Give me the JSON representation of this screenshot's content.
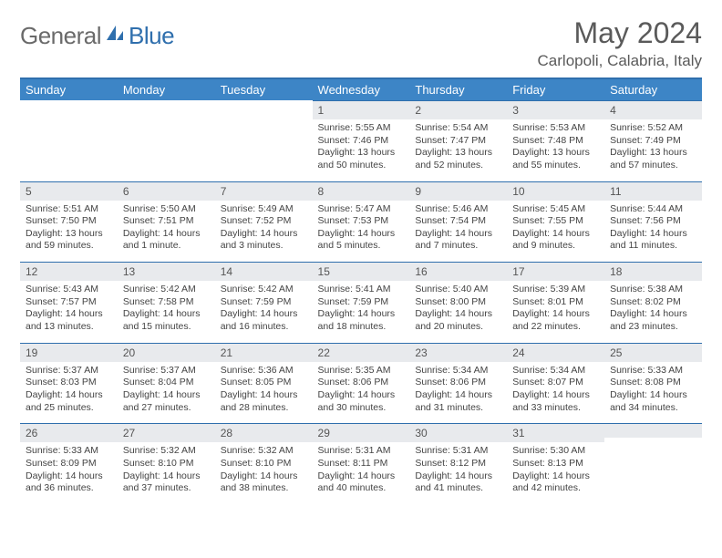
{
  "brand": {
    "part1": "General",
    "part2": "Blue"
  },
  "title": "May 2024",
  "location": "Carlopoli, Calabria, Italy",
  "dow": [
    "Sunday",
    "Monday",
    "Tuesday",
    "Wednesday",
    "Thursday",
    "Friday",
    "Saturday"
  ],
  "colors": {
    "header_bar": "#3d85c6",
    "accent_line": "#2f6fad",
    "daynum_bg": "#e8eaed",
    "text": "#444444",
    "title_text": "#5a5a5a"
  },
  "weeks": [
    [
      {
        "n": "",
        "sr": "",
        "ss": "",
        "dl": ""
      },
      {
        "n": "",
        "sr": "",
        "ss": "",
        "dl": ""
      },
      {
        "n": "",
        "sr": "",
        "ss": "",
        "dl": ""
      },
      {
        "n": "1",
        "sr": "Sunrise: 5:55 AM",
        "ss": "Sunset: 7:46 PM",
        "dl": "Daylight: 13 hours and 50 minutes."
      },
      {
        "n": "2",
        "sr": "Sunrise: 5:54 AM",
        "ss": "Sunset: 7:47 PM",
        "dl": "Daylight: 13 hours and 52 minutes."
      },
      {
        "n": "3",
        "sr": "Sunrise: 5:53 AM",
        "ss": "Sunset: 7:48 PM",
        "dl": "Daylight: 13 hours and 55 minutes."
      },
      {
        "n": "4",
        "sr": "Sunrise: 5:52 AM",
        "ss": "Sunset: 7:49 PM",
        "dl": "Daylight: 13 hours and 57 minutes."
      }
    ],
    [
      {
        "n": "5",
        "sr": "Sunrise: 5:51 AM",
        "ss": "Sunset: 7:50 PM",
        "dl": "Daylight: 13 hours and 59 minutes."
      },
      {
        "n": "6",
        "sr": "Sunrise: 5:50 AM",
        "ss": "Sunset: 7:51 PM",
        "dl": "Daylight: 14 hours and 1 minute."
      },
      {
        "n": "7",
        "sr": "Sunrise: 5:49 AM",
        "ss": "Sunset: 7:52 PM",
        "dl": "Daylight: 14 hours and 3 minutes."
      },
      {
        "n": "8",
        "sr": "Sunrise: 5:47 AM",
        "ss": "Sunset: 7:53 PM",
        "dl": "Daylight: 14 hours and 5 minutes."
      },
      {
        "n": "9",
        "sr": "Sunrise: 5:46 AM",
        "ss": "Sunset: 7:54 PM",
        "dl": "Daylight: 14 hours and 7 minutes."
      },
      {
        "n": "10",
        "sr": "Sunrise: 5:45 AM",
        "ss": "Sunset: 7:55 PM",
        "dl": "Daylight: 14 hours and 9 minutes."
      },
      {
        "n": "11",
        "sr": "Sunrise: 5:44 AM",
        "ss": "Sunset: 7:56 PM",
        "dl": "Daylight: 14 hours and 11 minutes."
      }
    ],
    [
      {
        "n": "12",
        "sr": "Sunrise: 5:43 AM",
        "ss": "Sunset: 7:57 PM",
        "dl": "Daylight: 14 hours and 13 minutes."
      },
      {
        "n": "13",
        "sr": "Sunrise: 5:42 AM",
        "ss": "Sunset: 7:58 PM",
        "dl": "Daylight: 14 hours and 15 minutes."
      },
      {
        "n": "14",
        "sr": "Sunrise: 5:42 AM",
        "ss": "Sunset: 7:59 PM",
        "dl": "Daylight: 14 hours and 16 minutes."
      },
      {
        "n": "15",
        "sr": "Sunrise: 5:41 AM",
        "ss": "Sunset: 7:59 PM",
        "dl": "Daylight: 14 hours and 18 minutes."
      },
      {
        "n": "16",
        "sr": "Sunrise: 5:40 AM",
        "ss": "Sunset: 8:00 PM",
        "dl": "Daylight: 14 hours and 20 minutes."
      },
      {
        "n": "17",
        "sr": "Sunrise: 5:39 AM",
        "ss": "Sunset: 8:01 PM",
        "dl": "Daylight: 14 hours and 22 minutes."
      },
      {
        "n": "18",
        "sr": "Sunrise: 5:38 AM",
        "ss": "Sunset: 8:02 PM",
        "dl": "Daylight: 14 hours and 23 minutes."
      }
    ],
    [
      {
        "n": "19",
        "sr": "Sunrise: 5:37 AM",
        "ss": "Sunset: 8:03 PM",
        "dl": "Daylight: 14 hours and 25 minutes."
      },
      {
        "n": "20",
        "sr": "Sunrise: 5:37 AM",
        "ss": "Sunset: 8:04 PM",
        "dl": "Daylight: 14 hours and 27 minutes."
      },
      {
        "n": "21",
        "sr": "Sunrise: 5:36 AM",
        "ss": "Sunset: 8:05 PM",
        "dl": "Daylight: 14 hours and 28 minutes."
      },
      {
        "n": "22",
        "sr": "Sunrise: 5:35 AM",
        "ss": "Sunset: 8:06 PM",
        "dl": "Daylight: 14 hours and 30 minutes."
      },
      {
        "n": "23",
        "sr": "Sunrise: 5:34 AM",
        "ss": "Sunset: 8:06 PM",
        "dl": "Daylight: 14 hours and 31 minutes."
      },
      {
        "n": "24",
        "sr": "Sunrise: 5:34 AM",
        "ss": "Sunset: 8:07 PM",
        "dl": "Daylight: 14 hours and 33 minutes."
      },
      {
        "n": "25",
        "sr": "Sunrise: 5:33 AM",
        "ss": "Sunset: 8:08 PM",
        "dl": "Daylight: 14 hours and 34 minutes."
      }
    ],
    [
      {
        "n": "26",
        "sr": "Sunrise: 5:33 AM",
        "ss": "Sunset: 8:09 PM",
        "dl": "Daylight: 14 hours and 36 minutes."
      },
      {
        "n": "27",
        "sr": "Sunrise: 5:32 AM",
        "ss": "Sunset: 8:10 PM",
        "dl": "Daylight: 14 hours and 37 minutes."
      },
      {
        "n": "28",
        "sr": "Sunrise: 5:32 AM",
        "ss": "Sunset: 8:10 PM",
        "dl": "Daylight: 14 hours and 38 minutes."
      },
      {
        "n": "29",
        "sr": "Sunrise: 5:31 AM",
        "ss": "Sunset: 8:11 PM",
        "dl": "Daylight: 14 hours and 40 minutes."
      },
      {
        "n": "30",
        "sr": "Sunrise: 5:31 AM",
        "ss": "Sunset: 8:12 PM",
        "dl": "Daylight: 14 hours and 41 minutes."
      },
      {
        "n": "31",
        "sr": "Sunrise: 5:30 AM",
        "ss": "Sunset: 8:13 PM",
        "dl": "Daylight: 14 hours and 42 minutes."
      },
      {
        "n": "",
        "sr": "",
        "ss": "",
        "dl": ""
      }
    ]
  ]
}
